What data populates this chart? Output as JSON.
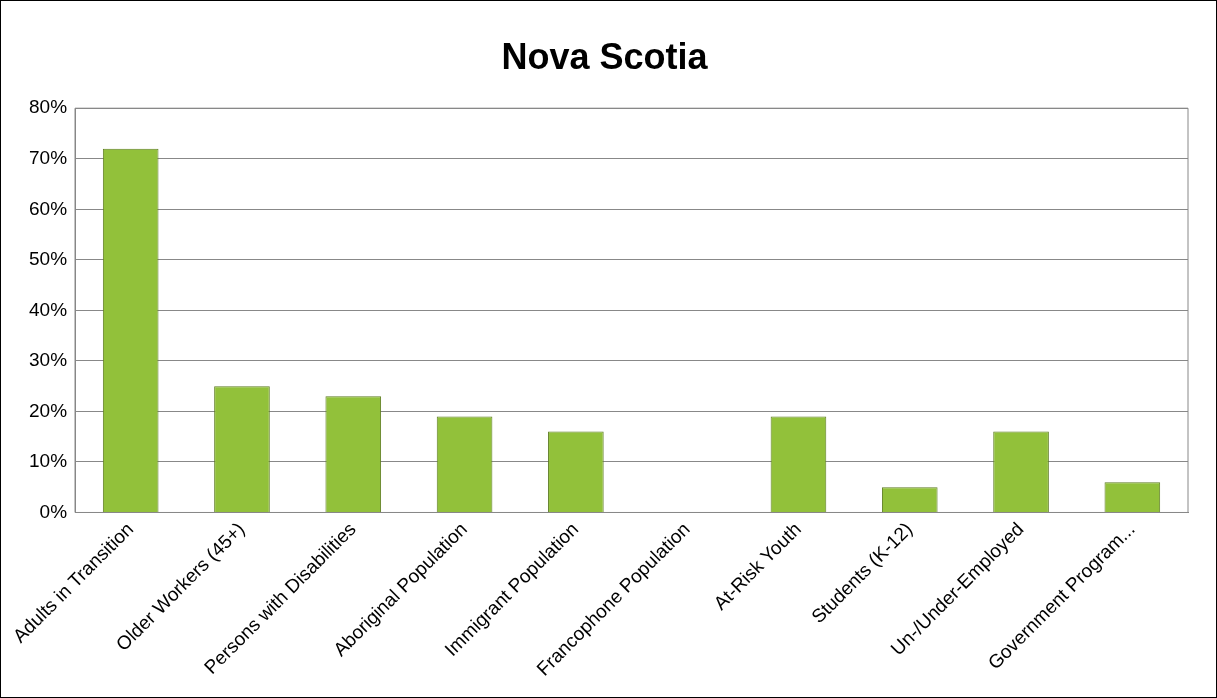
{
  "chart_data": {
    "type": "bar",
    "title": "Nova Scotia",
    "categories": [
      "Adults in Transition",
      "Older Workers (45+)",
      "Persons with Disabilities",
      "Aboriginal Population",
      "Immigrant Population",
      "Francophone Population",
      "At-Risk Youth",
      "Students (K-12)",
      "Un-/Under-Employed",
      "Government Program..."
    ],
    "values": [
      72,
      25,
      23,
      19,
      16,
      0,
      19,
      5,
      16,
      6
    ],
    "color": "#92c13a",
    "ylim": [
      0,
      80
    ],
    "yticks": [
      {
        "value": 0,
        "label": "0%"
      },
      {
        "value": 10,
        "label": "10%"
      },
      {
        "value": 20,
        "label": "20%"
      },
      {
        "value": 30,
        "label": "30%"
      },
      {
        "value": 40,
        "label": "40%"
      },
      {
        "value": 50,
        "label": "50%"
      },
      {
        "value": 60,
        "label": "60%"
      },
      {
        "value": 70,
        "label": "70%"
      },
      {
        "value": 80,
        "label": "80%"
      }
    ],
    "grid": "y",
    "legend": false
  }
}
